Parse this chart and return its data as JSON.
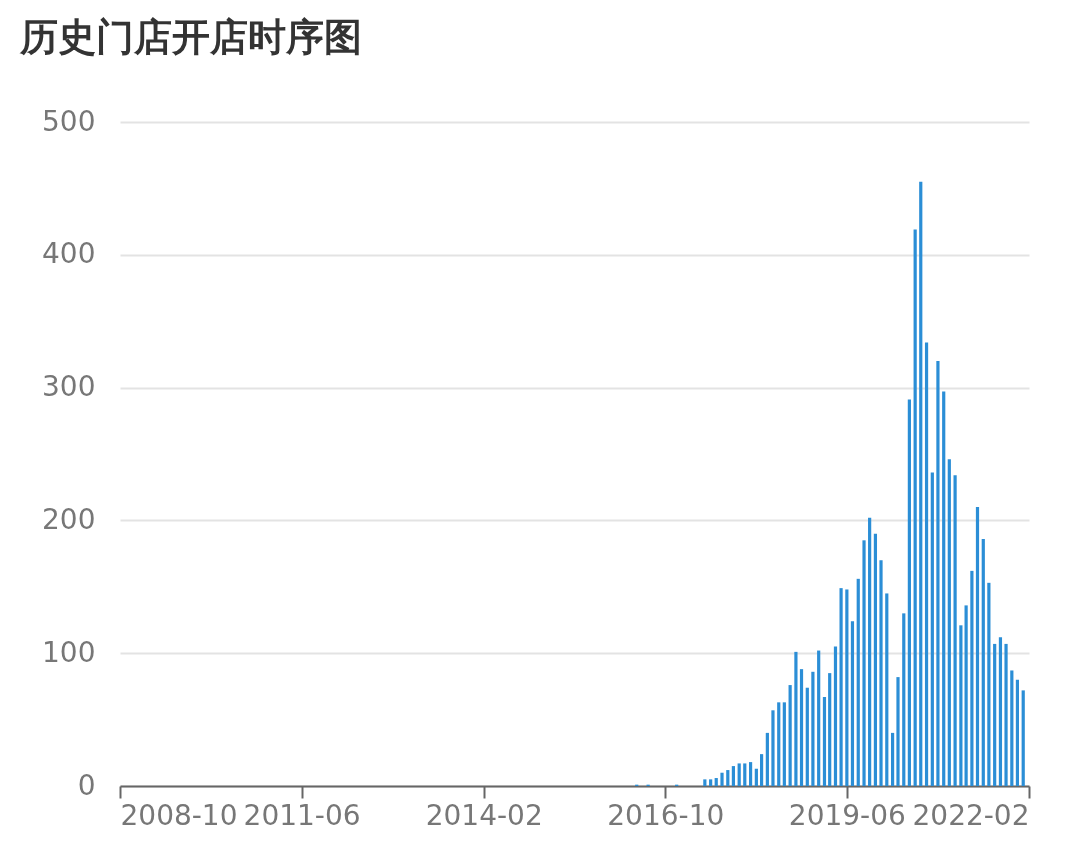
{
  "chart_data": {
    "type": "bar",
    "title": "历史门店开店时序图",
    "x": [
      "2016-05",
      "2016-07",
      "2016-12",
      "2017-05",
      "2017-06",
      "2017-07",
      "2017-08",
      "2017-09",
      "2017-10",
      "2017-11",
      "2017-12",
      "2018-01",
      "2018-02",
      "2018-03",
      "2018-04",
      "2018-05",
      "2018-06",
      "2018-07",
      "2018-08",
      "2018-09",
      "2018-10",
      "2018-11",
      "2018-12",
      "2019-01",
      "2019-02",
      "2019-03",
      "2019-04",
      "2019-05",
      "2019-06",
      "2019-07",
      "2019-08",
      "2019-09",
      "2019-10",
      "2019-11",
      "2019-12",
      "2020-01",
      "2020-02",
      "2020-03",
      "2020-04",
      "2020-05",
      "2020-06",
      "2020-07",
      "2020-08",
      "2020-09",
      "2020-10",
      "2020-11",
      "2020-12",
      "2021-01",
      "2021-02",
      "2021-03",
      "2021-04",
      "2021-05",
      "2021-06",
      "2021-07",
      "2021-08",
      "2021-09",
      "2021-10",
      "2021-11",
      "2021-12",
      "2022-01"
    ],
    "values": [
      1,
      1,
      1,
      5,
      5,
      6,
      10,
      12,
      15,
      17,
      17,
      18,
      13,
      24,
      40,
      57,
      63,
      63,
      76,
      101,
      88,
      74,
      86,
      102,
      67,
      85,
      105,
      149,
      148,
      124,
      156,
      185,
      202,
      190,
      170,
      145,
      40,
      82,
      130,
      291,
      419,
      455,
      334,
      236,
      320,
      297,
      246,
      234,
      121,
      136,
      162,
      210,
      186,
      153,
      107,
      112,
      107,
      87,
      80,
      72
    ],
    "color": "#2b8ed6",
    "xlim": [
      "2008-10",
      "2022-02"
    ],
    "xticks": [
      "2008-10",
      "2011-06",
      "2014-02",
      "2016-10",
      "2019-06",
      "2022-02"
    ],
    "ylim": [
      0,
      500
    ],
    "yticks": [
      0,
      100,
      200,
      300,
      400,
      500
    ],
    "grid": "y"
  }
}
